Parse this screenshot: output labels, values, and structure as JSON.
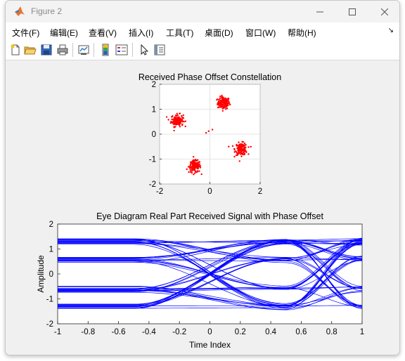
{
  "window": {
    "title": "Figure 2"
  },
  "menu": {
    "items": [
      "文件(F)",
      "编辑(E)",
      "查看(V)",
      "插入(I)",
      "工具(T)",
      "桌面(D)",
      "窗口(W)",
      "帮助(H)"
    ]
  },
  "toolbar": {
    "icons": [
      "new-figure-icon",
      "open-file-icon",
      "save-icon",
      "print-icon",
      "link-plot-icon",
      "insert-colorbar-icon",
      "insert-legend-icon",
      "pointer-icon",
      "property-inspector-icon"
    ]
  },
  "colors": {
    "constellation": "#ff0000",
    "eye": "#0000ff"
  },
  "chart_data": [
    {
      "type": "scatter",
      "title": "Received Phase Offset Constellation",
      "xlabel": "",
      "ylabel": "",
      "xlim": [
        -2,
        2
      ],
      "ylim": [
        -2,
        2
      ],
      "xticks": [
        "-2",
        "0",
        "2"
      ],
      "yticks": [
        "2",
        "1",
        "0",
        "-1",
        "-2"
      ],
      "grid": true,
      "clusters": [
        {
          "center": [
            0.55,
            1.25
          ],
          "spread": 0.12
        },
        {
          "center": [
            -1.3,
            0.55
          ],
          "spread": 0.12
        },
        {
          "center": [
            -0.6,
            -1.3
          ],
          "spread": 0.12
        },
        {
          "center": [
            1.25,
            -0.6
          ],
          "spread": 0.12
        }
      ],
      "outliers": [
        [
          -0.15,
          0.05
        ],
        [
          -0.05,
          0.12
        ],
        [
          0.1,
          0.18
        ],
        [
          0.75,
          -0.5
        ]
      ]
    },
    {
      "type": "line",
      "title": "Eye Diagram Real Part Received Signal with Phase Offset",
      "xlabel": "Time Index",
      "ylabel": "Amplitude",
      "xlim": [
        -1,
        1
      ],
      "ylim": [
        -2,
        2
      ],
      "xticks": [
        "-1",
        "-0.8",
        "-0.6",
        "-0.4",
        "-0.2",
        "0",
        "0.2",
        "0.4",
        "0.6",
        "0.8",
        "1"
      ],
      "yticks": [
        "2",
        "1",
        "0",
        "-1",
        "-2"
      ],
      "levels": [
        -1.3,
        -0.6,
        0.6,
        1.3
      ],
      "grid": false
    }
  ]
}
